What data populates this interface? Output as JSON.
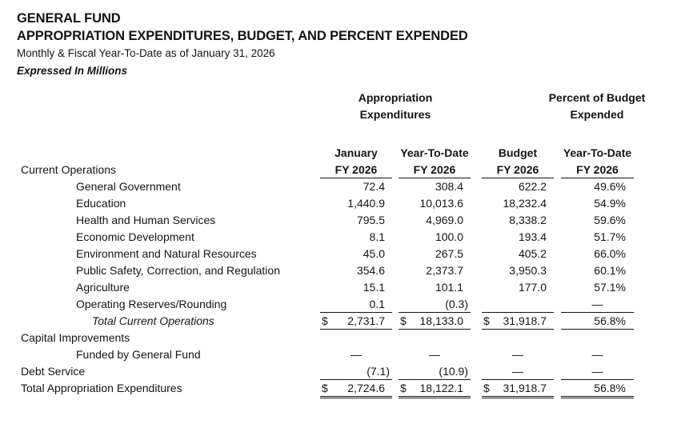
{
  "header": {
    "title_line1": "GENERAL FUND",
    "title_line2": "APPROPRIATION EXPENDITURES, BUDGET, AND PERCENT EXPENDED",
    "subtitle": "Monthly & Fiscal Year-To-Date as of January 31, 2026",
    "units_note": "Expressed In Millions"
  },
  "table": {
    "group_headers": {
      "appropriation": [
        "Appropriation",
        "Expenditures"
      ],
      "percent": [
        "Percent of Budget",
        "Expended"
      ]
    },
    "col_headers": [
      "January",
      "Year-To-Date",
      "Budget",
      "Year-To-Date"
    ],
    "col_subheaders": [
      "FY 2026",
      "FY 2026",
      "FY 2026",
      "FY 2026"
    ],
    "section_label": "Current Operations",
    "rows": [
      {
        "label": "General Government",
        "indent": 1,
        "italic": false,
        "rule": "none",
        "values": [
          "72.4",
          "308.4",
          "622.2",
          "49.6%"
        ]
      },
      {
        "label": "Education",
        "indent": 1,
        "italic": false,
        "rule": "none",
        "values": [
          "1,440.9",
          "10,013.6",
          "18,232.4",
          "54.9%"
        ]
      },
      {
        "label": "Health and Human Services",
        "indent": 1,
        "italic": false,
        "rule": "none",
        "values": [
          "795.5",
          "4,969.0",
          "8,338.2",
          "59.6%"
        ]
      },
      {
        "label": "Economic Development",
        "indent": 1,
        "italic": false,
        "rule": "none",
        "values": [
          "8.1",
          "100.0",
          "193.4",
          "51.7%"
        ]
      },
      {
        "label": "Environment and Natural Resources",
        "indent": 1,
        "italic": false,
        "rule": "none",
        "values": [
          "45.0",
          "267.5",
          "405.2",
          "66.0%"
        ]
      },
      {
        "label": "Public Safety, Correction, and Regulation",
        "indent": 1,
        "italic": false,
        "rule": "none",
        "values": [
          "354.6",
          "2,373.7",
          "3,950.3",
          "60.1%"
        ]
      },
      {
        "label": "Agriculture",
        "indent": 1,
        "italic": false,
        "rule": "none",
        "values": [
          "15.1",
          "101.1",
          "177.0",
          "57.1%"
        ]
      },
      {
        "label": "Operating Reserves/Rounding",
        "indent": 1,
        "italic": false,
        "rule": "single",
        "values": [
          "0.1",
          "(0.3)",
          "",
          "—"
        ]
      },
      {
        "label": "Total Current Operations",
        "indent": 2,
        "italic": true,
        "rule": "single",
        "values": [
          "$ 2,731.7",
          "$ 18,133.0",
          "$ 31,918.7",
          "56.8%"
        ]
      },
      {
        "label": "Capital Improvements",
        "indent": 0,
        "italic": false,
        "rule": "none",
        "values": [
          "",
          "",
          "",
          ""
        ]
      },
      {
        "label": "Funded by General Fund",
        "indent": 1,
        "italic": false,
        "rule": "none",
        "values": [
          "—",
          "—",
          "—",
          "—"
        ]
      },
      {
        "label": "Debt Service",
        "indent": 0,
        "italic": false,
        "rule": "single",
        "values": [
          "(7.1)",
          "(10.9)",
          "—",
          "—"
        ]
      },
      {
        "label": "Total Appropriation Expenditures",
        "indent": 0,
        "italic": false,
        "rule": "double",
        "values": [
          "$ 2,724.6",
          "$ 18,122.1",
          "$ 31,918.7",
          "56.8%"
        ]
      }
    ]
  }
}
